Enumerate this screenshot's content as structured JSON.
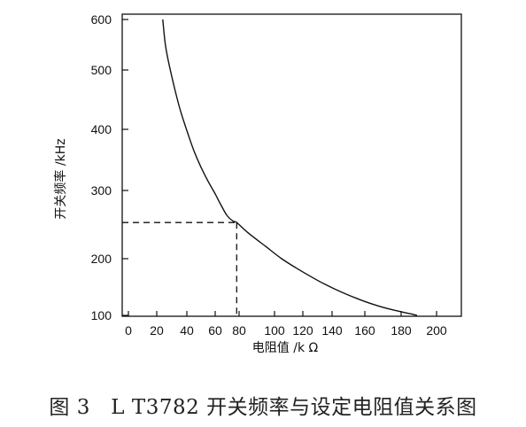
{
  "chart_data": {
    "type": "line",
    "title": "",
    "xlabel": "电阻值 /k Ω",
    "ylabel": "开关频率 /kHz",
    "xlim": [
      0,
      200
    ],
    "ylim": [
      100,
      600
    ],
    "x_ticks": [
      0,
      20,
      40,
      60,
      80,
      100,
      120,
      140,
      160,
      180,
      200
    ],
    "y_ticks": [
      100,
      200,
      300,
      400,
      500,
      600
    ],
    "grid": false,
    "series": [
      {
        "x": [
          24,
          26,
          30,
          35,
          40,
          45,
          50,
          55,
          60,
          65,
          70,
          75,
          78,
          85,
          95,
          105,
          115,
          125,
          135,
          145,
          155,
          165,
          175,
          185,
          189
        ],
        "y": [
          600,
          545,
          489,
          438,
          398,
          365,
          338,
          315,
          295,
          278,
          263,
          255,
          253,
          238,
          218,
          200,
          184,
          169,
          155,
          142,
          130,
          119,
          110,
          103,
          100
        ]
      }
    ],
    "annotations": {
      "marker_x": 78,
      "marker_y": 253
    }
  },
  "caption": "图 3   L T3782 开关频率与设定电阻值关系图"
}
